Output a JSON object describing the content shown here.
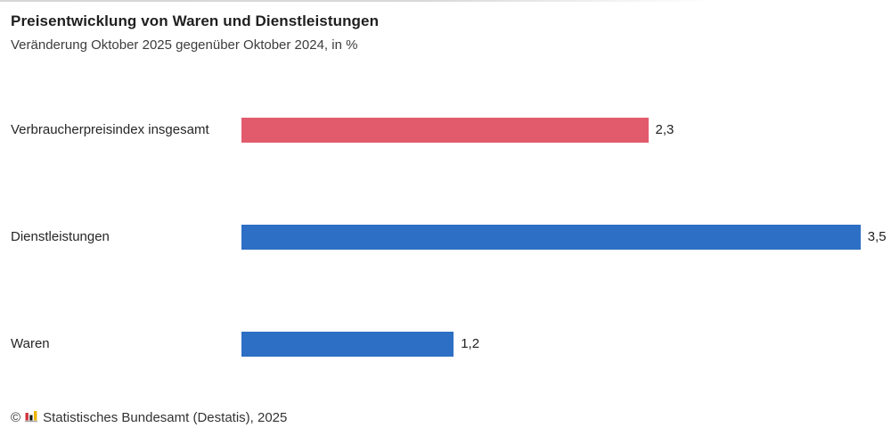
{
  "header": {
    "title": "Preisentwicklung von Waren und Dienstleistungen",
    "subtitle": "Veränderung Oktober 2025 gegenüber Oktober 2024, in %"
  },
  "chart_data": {
    "type": "bar",
    "orientation": "horizontal",
    "title": "Preisentwicklung von Waren und Dienstleistungen",
    "subtitle": "Veränderung Oktober 2025 gegenüber Oktober 2024, in %",
    "categories": [
      "Verbraucherpreisindex insgesamt",
      "Dienstleistungen",
      "Waren"
    ],
    "values": [
      2.3,
      3.5,
      1.2
    ],
    "value_labels": [
      "2,3",
      "3,5",
      "1,2"
    ],
    "bar_colors": [
      "#e25b6d",
      "#2d6fc4",
      "#2d6fc4"
    ],
    "unit": "%",
    "xlabel": "",
    "ylabel": "",
    "xlim": [
      0,
      3.7
    ],
    "grid": false,
    "legend": false,
    "value_label_position": "outside-end"
  },
  "footer": {
    "copyright": "©",
    "logo_icon": "destatis-bar-chart-icon",
    "source": "Statistisches Bundesamt (Destatis), 2025",
    "logo_colors": {
      "red": "#d0333d",
      "dark": "#1a1a1a",
      "gold": "#f0b400",
      "baseline": "#a6a6a6"
    }
  },
  "colors": {
    "accent_red": "#e25b6d",
    "accent_blue": "#2d6fc4",
    "title_text": "#1f1f1f",
    "subtitle_text": "#3d3d3d",
    "body_text": "#333333",
    "background": "#ffffff"
  }
}
